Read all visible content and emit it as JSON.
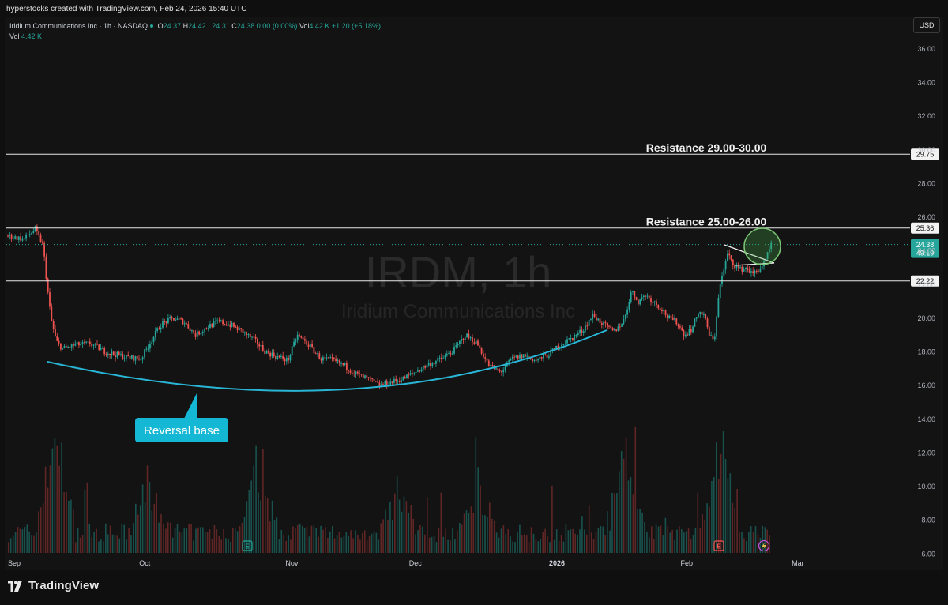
{
  "header": {
    "attribution": "hyperstocks created with TradingView.com, Feb 24, 2026 15:40 UTC"
  },
  "legend": {
    "symbol": "Iridium Communications Inc · 1h · NASDAQ",
    "o_label": "O",
    "o_value": "24.37",
    "h_label": "H",
    "h_value": "24.42",
    "l_label": "L",
    "l_value": "24.31",
    "c_label": "C",
    "c_value": "24.38",
    "change": "0.00 (0.00%)",
    "vol_label": "Vol",
    "vol_value": "4.42 K",
    "vol_change": "+1.20 (+5.18%)",
    "vol_row_label": "Vol",
    "vol_row_value": "4.42 K"
  },
  "currency_button": "USD",
  "watermark": {
    "ticker": "IRDM, 1h",
    "name": "Iridium Communications Inc"
  },
  "footer": {
    "brand": "TradingView"
  },
  "colors": {
    "up": "#26a69a",
    "down": "#ef5350",
    "curve": "#29b6d6",
    "label_bg": "#14b8d4",
    "circle_fill": "#4caf50",
    "last_price_bg": "#26a69a"
  },
  "icons": {
    "earnings": "E-icon",
    "flash": "lightning-icon"
  },
  "chart_data": {
    "type": "candlestick",
    "ylim": [
      5.5,
      37.5
    ],
    "y_ticks": [
      "36.00",
      "34.00",
      "32.00",
      "30.00",
      "28.00",
      "26.00",
      "24.00",
      "22.00",
      "20.00",
      "18.00",
      "16.00",
      "14.00",
      "12.00",
      "10.00",
      "8.00",
      "6.00"
    ],
    "y_tick_values": [
      36,
      34,
      32,
      30,
      28,
      26,
      24,
      22,
      20,
      18,
      16,
      14,
      12,
      10,
      8,
      6
    ],
    "x_ticks": [
      {
        "label": "Sep",
        "t": 0.0
      },
      {
        "label": "Oct",
        "t": 0.175
      },
      {
        "label": "Nov",
        "t": 0.363
      },
      {
        "label": "Dec",
        "t": 0.521
      },
      {
        "label": "2026",
        "t": 0.702
      },
      {
        "label": "Feb",
        "t": 0.868
      },
      {
        "label": "Mar",
        "t": 1.01
      }
    ],
    "price_path": [
      [
        0.0,
        24.9
      ],
      [
        0.02,
        24.7
      ],
      [
        0.035,
        25.3
      ],
      [
        0.045,
        24.3
      ],
      [
        0.05,
        22.0
      ],
      [
        0.055,
        20.0
      ],
      [
        0.062,
        18.6
      ],
      [
        0.07,
        18.2
      ],
      [
        0.085,
        18.4
      ],
      [
        0.105,
        18.5
      ],
      [
        0.125,
        18.0
      ],
      [
        0.15,
        17.7
      ],
      [
        0.17,
        17.6
      ],
      [
        0.18,
        18.4
      ],
      [
        0.195,
        19.6
      ],
      [
        0.21,
        20.0
      ],
      [
        0.225,
        19.8
      ],
      [
        0.24,
        19.0
      ],
      [
        0.255,
        19.5
      ],
      [
        0.27,
        19.8
      ],
      [
        0.285,
        19.6
      ],
      [
        0.3,
        19.2
      ],
      [
        0.315,
        18.7
      ],
      [
        0.33,
        18.0
      ],
      [
        0.345,
        17.7
      ],
      [
        0.358,
        17.5
      ],
      [
        0.37,
        19.0
      ],
      [
        0.385,
        18.4
      ],
      [
        0.4,
        17.6
      ],
      [
        0.415,
        17.5
      ],
      [
        0.43,
        17.2
      ],
      [
        0.445,
        16.7
      ],
      [
        0.46,
        16.4
      ],
      [
        0.475,
        16.0
      ],
      [
        0.49,
        16.2
      ],
      [
        0.505,
        16.4
      ],
      [
        0.52,
        16.8
      ],
      [
        0.54,
        17.3
      ],
      [
        0.555,
        17.6
      ],
      [
        0.57,
        18.1
      ],
      [
        0.585,
        19.0
      ],
      [
        0.6,
        18.5
      ],
      [
        0.615,
        17.2
      ],
      [
        0.63,
        16.8
      ],
      [
        0.645,
        17.6
      ],
      [
        0.66,
        17.8
      ],
      [
        0.675,
        17.5
      ],
      [
        0.69,
        17.8
      ],
      [
        0.705,
        18.4
      ],
      [
        0.72,
        18.8
      ],
      [
        0.735,
        19.3
      ],
      [
        0.748,
        20.2
      ],
      [
        0.762,
        19.6
      ],
      [
        0.775,
        19.2
      ],
      [
        0.788,
        19.9
      ],
      [
        0.797,
        21.6
      ],
      [
        0.806,
        21.0
      ],
      [
        0.815,
        21.4
      ],
      [
        0.825,
        21.0
      ],
      [
        0.835,
        20.6
      ],
      [
        0.845,
        20.0
      ],
      [
        0.855,
        19.8
      ],
      [
        0.865,
        19.0
      ],
      [
        0.875,
        19.4
      ],
      [
        0.883,
        20.4
      ],
      [
        0.89,
        20.2
      ],
      [
        0.897,
        19.0
      ],
      [
        0.903,
        18.6
      ],
      [
        0.909,
        21.6
      ],
      [
        0.915,
        22.8
      ],
      [
        0.92,
        23.8
      ],
      [
        0.928,
        23.2
      ],
      [
        0.936,
        22.9
      ],
      [
        0.944,
        23.0
      ],
      [
        0.952,
        22.6
      ],
      [
        0.96,
        22.9
      ],
      [
        0.968,
        23.3
      ],
      [
        0.976,
        24.38
      ]
    ],
    "resistance_lines": [
      {
        "value": 29.75,
        "tag": "29.75",
        "label": "Resistance 29.00-30.00"
      },
      {
        "value": 25.36,
        "tag": "25.36",
        "label": "Resistance 25.00-26.00"
      },
      {
        "value": 22.22,
        "tag": "22.22",
        "label": ""
      }
    ],
    "last_price": {
      "value": 24.38,
      "tag": "24.38",
      "countdown": "49:19"
    },
    "annotations": [
      {
        "type": "curve",
        "label": "Reversal base"
      },
      {
        "type": "trendline"
      },
      {
        "type": "circle"
      }
    ],
    "volume": {
      "ymax_fraction": 0.25,
      "peaks": [
        [
          0.06,
          1.0
        ],
        [
          0.32,
          0.75
        ],
        [
          0.79,
          0.9
        ],
        [
          0.91,
          1.0
        ],
        [
          0.6,
          0.55
        ],
        [
          0.5,
          0.45
        ],
        [
          0.18,
          0.5
        ]
      ]
    }
  }
}
